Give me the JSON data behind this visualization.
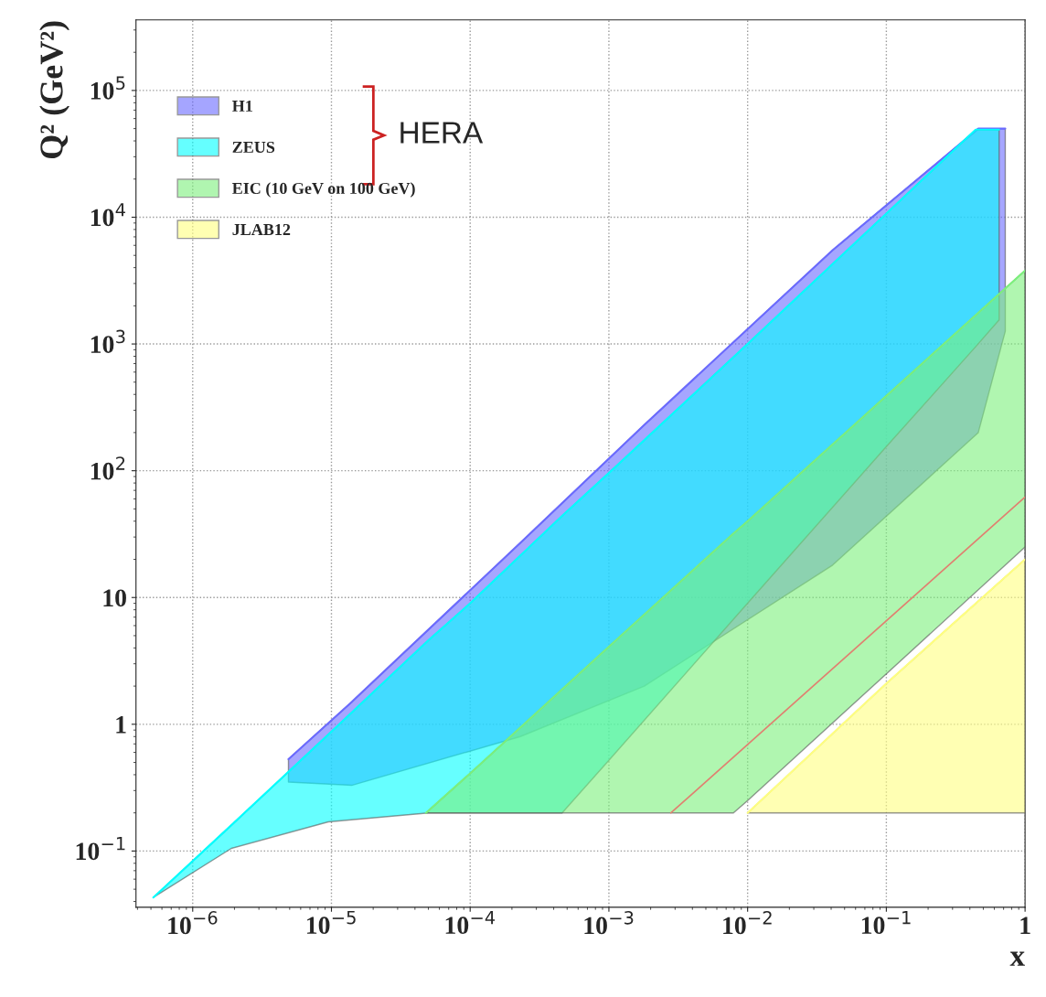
{
  "chart_data": {
    "type": "line",
    "xlabel": "x",
    "ylabel": "Q² (GeV²)",
    "log": "xy",
    "grid": true,
    "legend": "top left",
    "xlim": [
      3.9e-07,
      1
    ],
    "ylim": [
      0.036,
      360000
    ],
    "xticks": [
      {
        "value": 1e-06,
        "label": "10$^{−6}$"
      },
      {
        "value": 1e-05,
        "label": "10$^{−5}$"
      },
      {
        "value": 0.0001,
        "label": "10$^{−4}$"
      },
      {
        "value": 0.001,
        "label": "10$^{−3}$"
      },
      {
        "value": 0.01,
        "label": "10$^{−2}$"
      },
      {
        "value": 0.1,
        "label": "10$^{−1}$"
      },
      1
    ],
    "yticks": [
      {
        "value": 0.1,
        "label": "10$^{−1}$"
      },
      1,
      10,
      {
        "value": 100,
        "label": "10$^{2}$"
      },
      {
        "value": 1000,
        "label": "10$^{3}$"
      },
      {
        "value": 10000,
        "label": "10$^{4}$"
      },
      {
        "value": 100000,
        "label": "10$^{5}$"
      }
    ],
    "annotations": [
      "HERA"
    ],
    "series": [
      {
        "name": "H1",
        "color": "#6a6aff",
        "x": [
          4.9e-06,
          1.4e-05,
          0.00023,
          0.0018,
          0.041,
          0.46,
          0.72
        ],
        "values": [
          0.53,
          1.5,
          27,
          230,
          5500,
          50000,
          50000
        ],
        "upper": [
          0.53,
          1.5,
          27,
          230,
          5500,
          50000,
          50000
        ],
        "lower": [
          0.35,
          0.33,
          0.8,
          2,
          18,
          200,
          1260
        ]
      },
      {
        "name": "ZEUS",
        "color": "#00ffff",
        "x": [
          5.2e-07,
          1.9e-06,
          9.5e-06,
          5e-05,
          0.0001,
          0.00046,
          0.001,
          0.01,
          0.1,
          0.44,
          0.65
        ],
        "values": [
          0.043,
          0.16,
          0.83,
          4.6,
          9,
          44,
          96,
          1000,
          10700,
          49000,
          49000
        ],
        "upper": [
          0.043,
          0.16,
          0.83,
          4.6,
          9,
          44,
          96,
          1000,
          10700,
          49000,
          49000
        ],
        "lower": [
          0.043,
          0.105,
          0.17,
          0.2,
          0.2,
          0.2,
          0.52,
          9,
          155,
          950,
          1550
        ]
      },
      {
        "name": "EIC (10 GeV on 100 GeV)",
        "color": "#7cf07c",
        "x": [
          4.8e-05,
          0.0001,
          0.001,
          0.0079,
          0.01,
          0.1,
          1
        ],
        "values": [
          0.2,
          0.41,
          4.1,
          32,
          40,
          390,
          3800
        ],
        "upper": [
          0.2,
          0.41,
          4.1,
          32,
          40,
          390,
          3800
        ],
        "lower": [
          0.2,
          0.2,
          0.2,
          0.2,
          0.25,
          2.5,
          25
        ]
      },
      {
        "name": "JLAB12",
        "color": "#ffff80",
        "x": [
          0.01,
          0.1,
          1
        ],
        "values": [
          0.2,
          2.1,
          20
        ],
        "upper": [
          0.2,
          2.1,
          20
        ],
        "lower": [
          0.2,
          0.2,
          0.2
        ]
      },
      {
        "type": "line",
        "color": "#e08070",
        "x": [
          0.0028,
          1
        ],
        "values": [
          0.2,
          62
        ]
      }
    ]
  }
}
